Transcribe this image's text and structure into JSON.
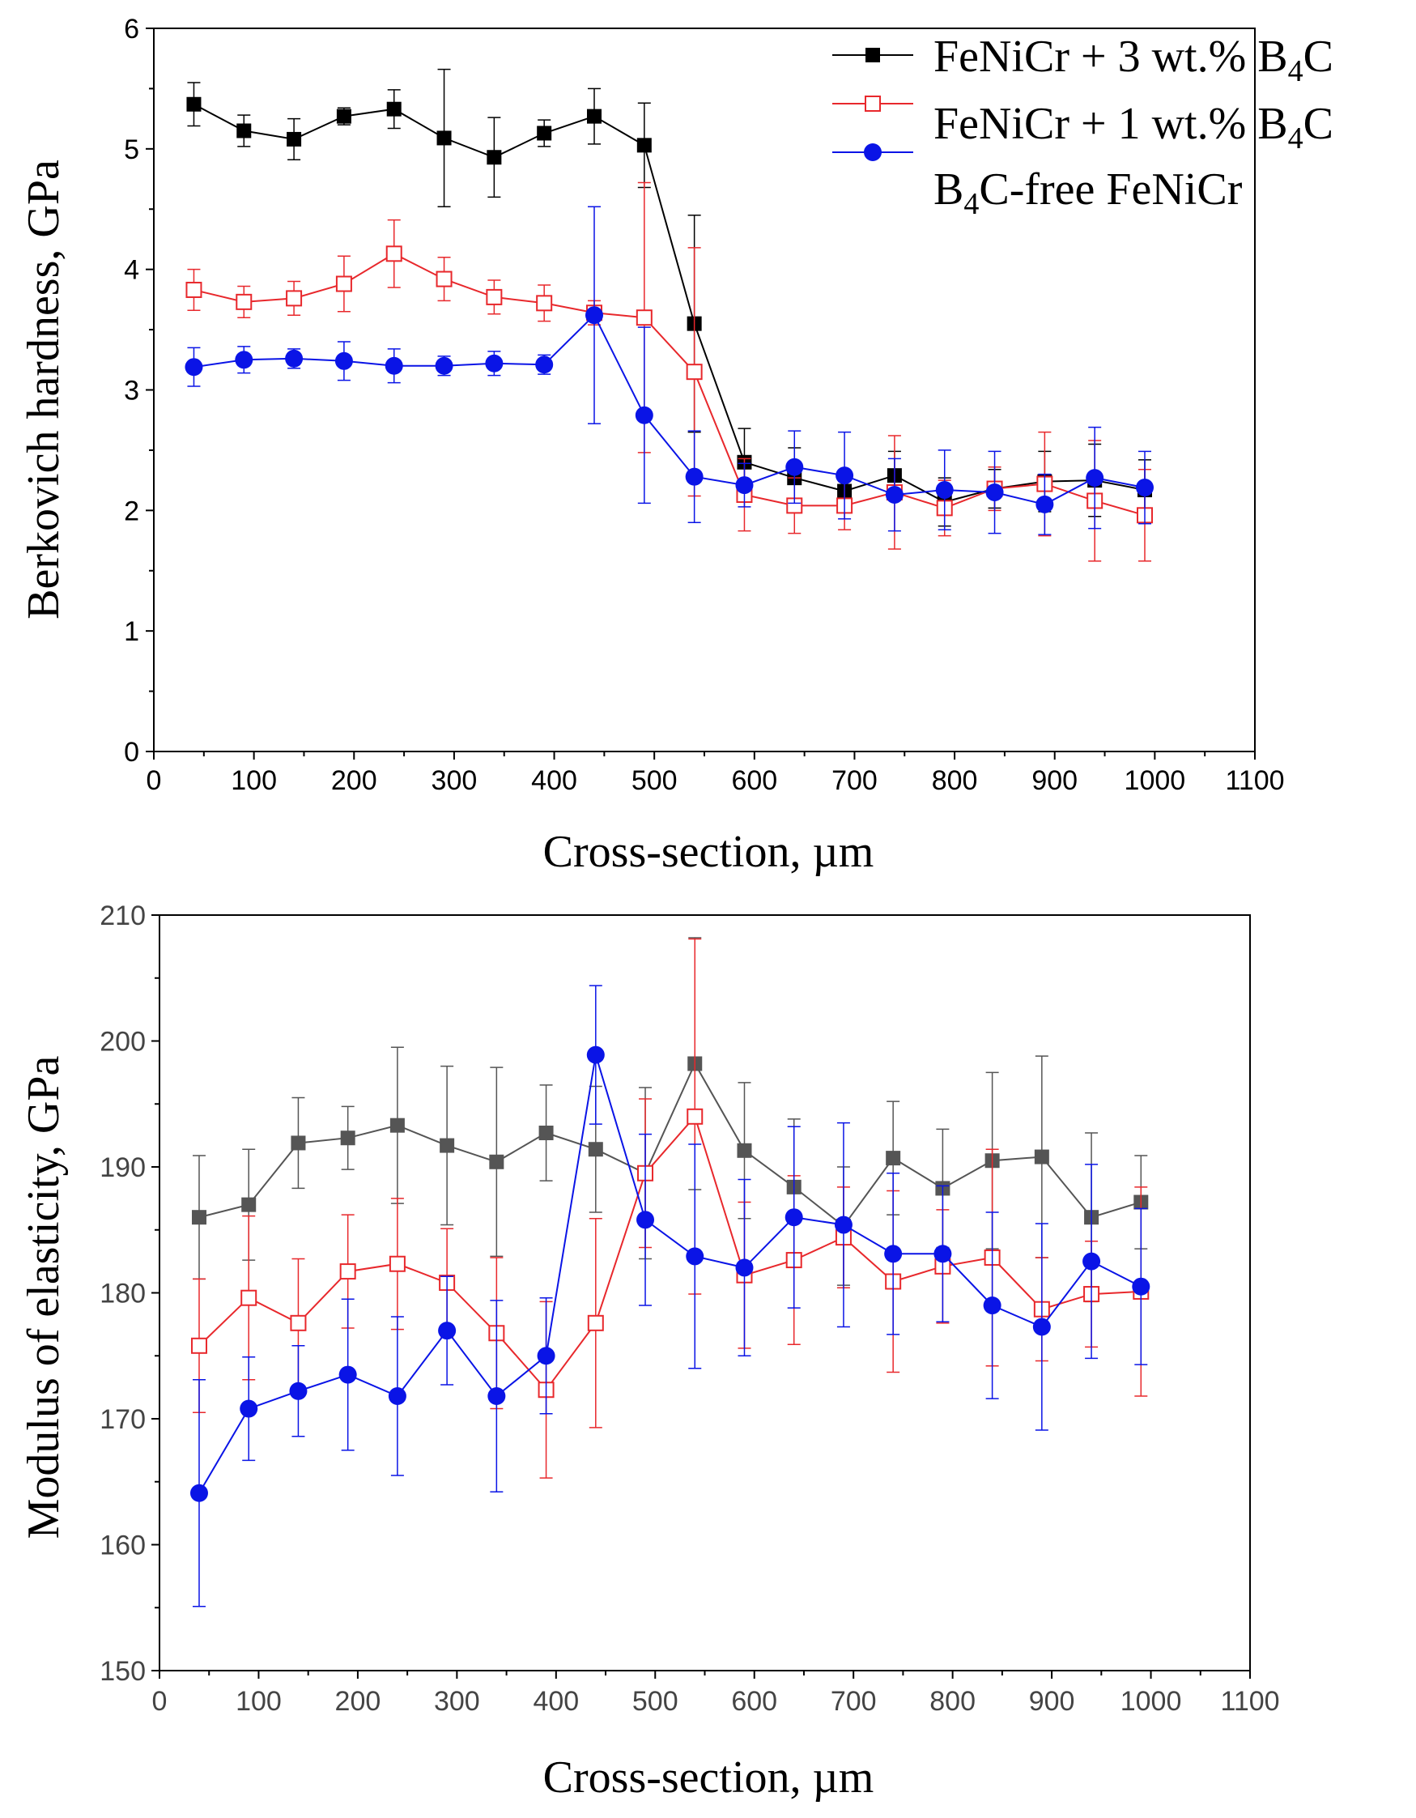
{
  "chart_data": [
    {
      "type": "line",
      "title": "",
      "xlabel": "Cross-section, µm",
      "ylabel": "Berkovich hardness, GPa",
      "xlim": [
        0,
        1100
      ],
      "ylim": [
        0,
        6
      ],
      "x_ticks": [
        0,
        100,
        200,
        300,
        400,
        500,
        600,
        700,
        800,
        900,
        1000,
        1100
      ],
      "y_ticks": [
        0,
        1,
        2,
        3,
        4,
        5,
        6
      ],
      "legend_position": "top-right",
      "x": [
        40,
        90,
        140,
        190,
        240,
        290,
        340,
        390,
        440,
        490,
        540,
        590,
        640,
        690,
        740,
        790,
        840,
        890,
        940,
        990
      ],
      "series": [
        {
          "name_main": "FeNiCr + 3 wt.% B",
          "name_sub": "4",
          "name_tail": "C",
          "name": "FeNiCr + 3 wt.% B4C",
          "color": "#000000",
          "marker": "filled-square",
          "values": [
            5.37,
            5.15,
            5.08,
            5.27,
            5.33,
            5.09,
            4.93,
            5.13,
            5.27,
            5.03,
            3.55,
            2.4,
            2.27,
            2.16,
            2.29,
            2.07,
            2.18,
            2.24,
            2.25,
            2.17
          ],
          "errors": [
            0.18,
            0.13,
            0.17,
            0.07,
            0.16,
            0.57,
            0.33,
            0.11,
            0.23,
            0.35,
            0.9,
            0.28,
            0.25,
            0.15,
            0.2,
            0.2,
            0.16,
            0.25,
            0.3,
            0.25
          ]
        },
        {
          "name_main": "FeNiCr + 1 wt.% B",
          "name_sub": "4",
          "name_tail": "C",
          "name": "FeNiCr + 1 wt.% B4C",
          "color": "#e8282c",
          "marker": "open-square",
          "values": [
            3.83,
            3.73,
            3.76,
            3.88,
            4.13,
            3.92,
            3.77,
            3.72,
            3.64,
            3.6,
            3.15,
            2.13,
            2.04,
            2.04,
            2.15,
            2.02,
            2.18,
            2.22,
            2.08,
            1.96
          ],
          "errors": [
            0.17,
            0.13,
            0.14,
            0.23,
            0.28,
            0.18,
            0.14,
            0.15,
            0.1,
            1.12,
            1.03,
            0.3,
            0.23,
            0.2,
            0.47,
            0.23,
            0.18,
            0.43,
            0.5,
            0.38
          ]
        },
        {
          "name_pre": "B",
          "name_sub": "4",
          "name_tail": "C-free FeNiCr",
          "name": "B4C-free FeNiCr",
          "color": "#0a14e6",
          "marker": "filled-circle",
          "values": [
            3.19,
            3.25,
            3.26,
            3.24,
            3.2,
            3.2,
            3.22,
            3.21,
            3.62,
            2.79,
            2.28,
            2.21,
            2.36,
            2.29,
            2.13,
            2.17,
            2.15,
            2.05,
            2.27,
            2.19
          ],
          "errors": [
            0.16,
            0.11,
            0.08,
            0.16,
            0.14,
            0.08,
            0.1,
            0.08,
            0.9,
            0.73,
            0.38,
            0.18,
            0.3,
            0.36,
            0.3,
            0.33,
            0.34,
            0.25,
            0.42,
            0.3
          ]
        }
      ]
    },
    {
      "type": "line",
      "title": "",
      "xlabel": "Cross-section, µm",
      "ylabel": "Modulus of elasticity, GPa",
      "xlim": [
        0,
        1100
      ],
      "ylim": [
        150,
        210
      ],
      "x_ticks": [
        0,
        100,
        200,
        300,
        400,
        500,
        600,
        700,
        800,
        900,
        1000,
        1100
      ],
      "y_ticks": [
        150,
        160,
        170,
        180,
        190,
        200,
        210
      ],
      "x": [
        40,
        90,
        140,
        190,
        240,
        290,
        340,
        390,
        440,
        490,
        540,
        590,
        640,
        690,
        740,
        790,
        840,
        890,
        940,
        990
      ],
      "series": [
        {
          "name": "FeNiCr + 3 wt.% B4C",
          "color": "#555555",
          "marker": "filled-square",
          "values": [
            186.0,
            187.0,
            191.9,
            192.3,
            193.3,
            191.7,
            190.4,
            192.7,
            191.4,
            189.5,
            198.2,
            191.3,
            188.4,
            185.3,
            190.7,
            188.3,
            190.5,
            190.8,
            186.0,
            187.2
          ],
          "errors": [
            4.9,
            4.4,
            3.6,
            2.5,
            6.2,
            6.3,
            7.5,
            3.8,
            5.0,
            6.8,
            10.0,
            5.4,
            5.4,
            4.7,
            4.5,
            4.7,
            7.0,
            8.0,
            6.7,
            3.7
          ]
        },
        {
          "name": "FeNiCr + 1 wt.% B4C",
          "color": "#e8282c",
          "marker": "open-square",
          "values": [
            175.8,
            179.6,
            177.6,
            181.7,
            182.3,
            180.8,
            176.8,
            172.3,
            177.6,
            189.5,
            194.0,
            181.4,
            182.6,
            184.4,
            180.9,
            182.1,
            182.8,
            178.7,
            179.9,
            180.1
          ],
          "errors": [
            5.3,
            6.5,
            5.1,
            4.5,
            5.2,
            4.3,
            6.0,
            7.0,
            8.3,
            5.9,
            14.1,
            5.8,
            6.7,
            4.0,
            7.2,
            4.5,
            8.6,
            4.1,
            4.2,
            8.3
          ]
        },
        {
          "name": "B4C-free FeNiCr",
          "color": "#0a14e6",
          "marker": "filled-circle",
          "values": [
            164.1,
            170.8,
            172.2,
            173.5,
            171.8,
            177.0,
            171.8,
            175.0,
            198.9,
            185.8,
            182.9,
            182.0,
            186.0,
            185.4,
            183.1,
            183.1,
            179.0,
            177.3,
            182.5,
            180.5
          ],
          "errors": [
            9.0,
            4.1,
            3.6,
            6.0,
            6.3,
            4.3,
            7.6,
            4.6,
            5.5,
            6.8,
            8.9,
            7.0,
            7.2,
            8.1,
            6.4,
            5.4,
            7.4,
            8.2,
            7.7,
            6.2
          ]
        }
      ]
    }
  ]
}
